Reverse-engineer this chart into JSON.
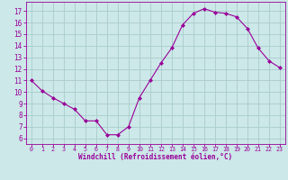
{
  "x": [
    0,
    1,
    2,
    3,
    4,
    5,
    6,
    7,
    8,
    9,
    10,
    11,
    12,
    13,
    14,
    15,
    16,
    17,
    18,
    19,
    20,
    21,
    22,
    23
  ],
  "y": [
    11.0,
    10.1,
    9.5,
    9.0,
    8.5,
    7.5,
    7.5,
    6.3,
    6.3,
    7.0,
    9.5,
    11.0,
    12.5,
    13.8,
    15.8,
    16.8,
    17.2,
    16.9,
    16.8,
    16.5,
    15.5,
    13.8,
    12.7,
    12.1
  ],
  "line_color": "#990099",
  "marker": "D",
  "marker_size": 2.0,
  "bg_color": "#cce8e8",
  "grid_color": "#aacccc",
  "xlabel": "Windchill (Refroidissement éolien,°C)",
  "xlabel_color": "#990099",
  "tick_color": "#990099",
  "ylim": [
    5.5,
    17.8
  ],
  "yticks": [
    6,
    7,
    8,
    9,
    10,
    11,
    12,
    13,
    14,
    15,
    16,
    17
  ],
  "xlim": [
    -0.5,
    23.5
  ],
  "xticks": [
    0,
    1,
    2,
    3,
    4,
    5,
    6,
    7,
    8,
    9,
    10,
    11,
    12,
    13,
    14,
    15,
    16,
    17,
    18,
    19,
    20,
    21,
    22,
    23
  ]
}
